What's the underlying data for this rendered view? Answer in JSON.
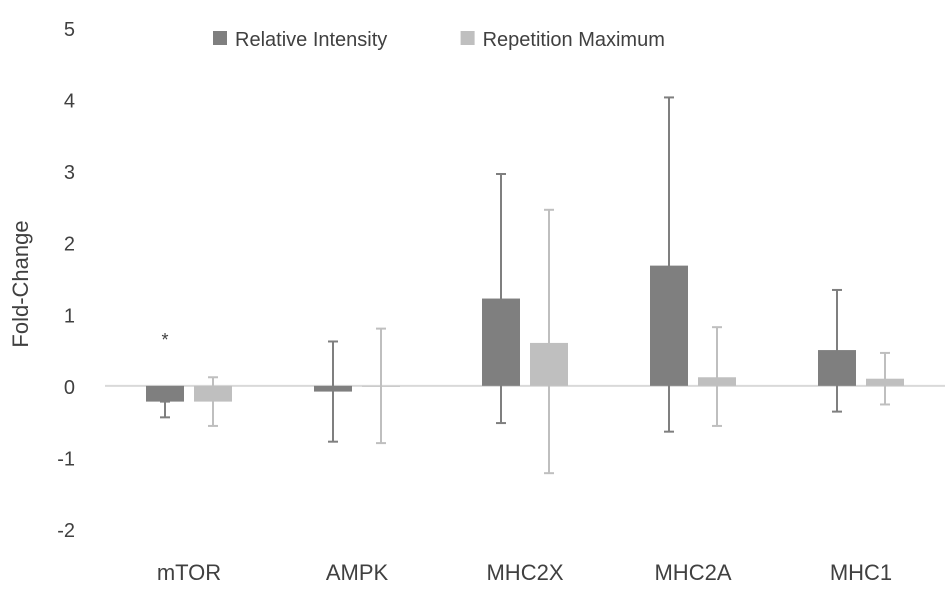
{
  "chart_data": {
    "type": "bar",
    "ylabel": "Fold-Change",
    "ylim": [
      -2,
      5
    ],
    "yticks": [
      -2,
      -1,
      0,
      1,
      2,
      3,
      4,
      5
    ],
    "grid": false,
    "legend_position": "top-center",
    "categories": [
      "mTOR",
      "AMPK",
      "MHC2X",
      "MHC2A",
      "MHC1"
    ],
    "series": [
      {
        "name": "Relative Intensity",
        "color": "#7f7f7f",
        "values": [
          -0.22,
          -0.08,
          1.22,
          1.68,
          0.5
        ],
        "error_upper": [
          -0.22,
          0.62,
          2.96,
          4.03,
          1.34
        ],
        "error_lower": [
          -0.44,
          -0.78,
          -0.52,
          -0.64,
          -0.36
        ]
      },
      {
        "name": "Repetition Maximum",
        "color": "#bfbfbf",
        "values": [
          -0.22,
          0.0,
          0.6,
          0.12,
          0.1
        ],
        "error_upper": [
          0.12,
          0.8,
          2.46,
          0.82,
          0.46
        ],
        "error_lower": [
          -0.56,
          -0.8,
          -1.22,
          -0.56,
          -0.26
        ]
      }
    ],
    "annotations": [
      {
        "text": "*",
        "category": "mTOR",
        "series": 0,
        "y": 0.7
      }
    ]
  }
}
